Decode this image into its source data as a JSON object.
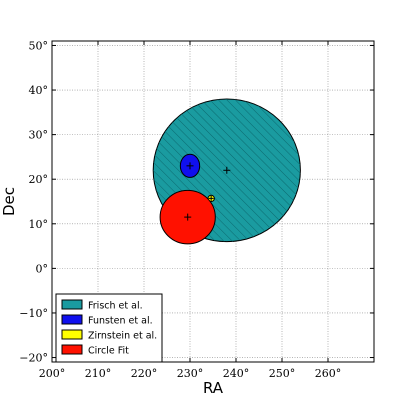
{
  "chart_data": {
    "type": "scatter",
    "title": "",
    "xlabel": "RA",
    "ylabel": "Dec",
    "xlim": [
      200,
      270
    ],
    "ylim": [
      -21,
      51
    ],
    "xticks": [
      200,
      210,
      220,
      230,
      240,
      250,
      260
    ],
    "xtick_labels": [
      "200°",
      "210°",
      "220°",
      "230°",
      "240°",
      "250°",
      "260°"
    ],
    "yticks": [
      -20,
      -10,
      0,
      10,
      20,
      30,
      40,
      50
    ],
    "ytick_labels": [
      "−20°",
      "−10°",
      "0°",
      "10°",
      "20°",
      "30°",
      "40°",
      "50°"
    ],
    "grid": true,
    "legend_position": "lower-left",
    "series": [
      {
        "name": "Frisch et al.",
        "color": "#1a9ba0",
        "hatch": "diagonal",
        "center": [
          238,
          22
        ],
        "rx": 16,
        "ry": 16
      },
      {
        "name": "Funsten et al.",
        "color": "#1010ee",
        "hatch": "none",
        "center": [
          230,
          23
        ],
        "rx": 2.1,
        "ry": 2.6
      },
      {
        "name": "Zirnstein et al.",
        "color": "#ffff00",
        "hatch": "none",
        "center": [
          234.6,
          15.7
        ],
        "rx": 0.7,
        "ry": 0.7
      },
      {
        "name": "Circle Fit",
        "color": "#ff1100",
        "hatch": "none",
        "center": [
          229.5,
          11.5
        ],
        "rx": 6,
        "ry": 6
      }
    ]
  }
}
